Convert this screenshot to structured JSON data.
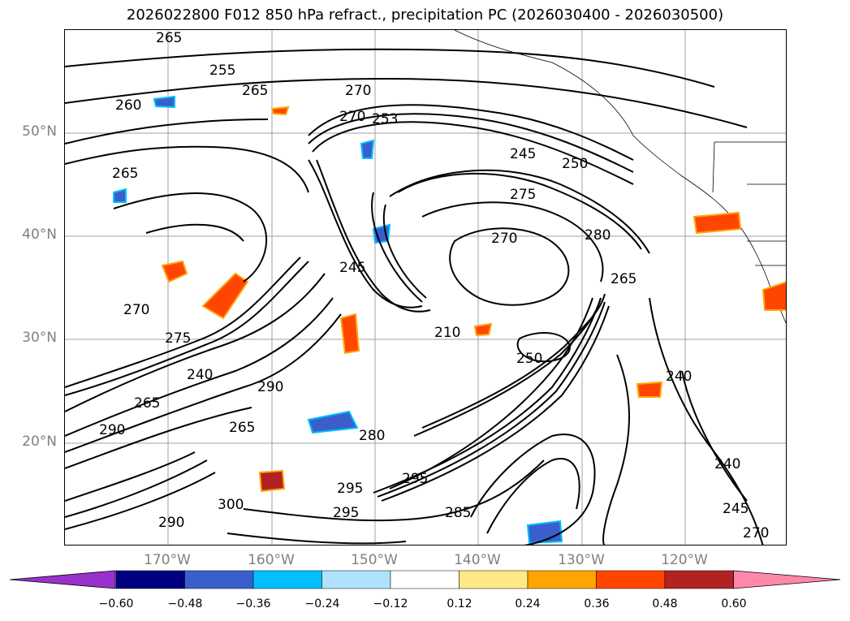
{
  "title": "2026022800 F012 850 hPa refract., precipitation PC (2026030400 - 2026030500)",
  "latitude_labels": [
    "50°N",
    "40°N",
    "30°N",
    "20°N"
  ],
  "longitude_labels": [
    "170°W",
    "160°W",
    "150°W",
    "140°W",
    "130°W",
    "120°W"
  ],
  "contour_labels": [
    "265",
    "255",
    "265",
    "260",
    "270",
    "270",
    "253",
    "265",
    "245",
    "250",
    "275",
    "280",
    "270",
    "265",
    "245",
    "270",
    "275",
    "210",
    "250",
    "240",
    "290",
    "265",
    "240",
    "290",
    "265",
    "280",
    "300",
    "295",
    "290",
    "295",
    "295",
    "285",
    "240",
    "245",
    "270"
  ],
  "colorbar": {
    "tick_labels": [
      "−0.60",
      "−0.48",
      "−0.36",
      "−0.24",
      "−0.12",
      "0.12",
      "0.24",
      "0.36",
      "0.48",
      "0.60"
    ],
    "colors": [
      "#9932cc",
      "#000080",
      "#3a5fcd",
      "#00bfff",
      "#b0e2ff",
      "#ffffff",
      "#ffe987",
      "#ffa500",
      "#ff4500",
      "#b22222",
      "#ff88aa"
    ]
  }
}
